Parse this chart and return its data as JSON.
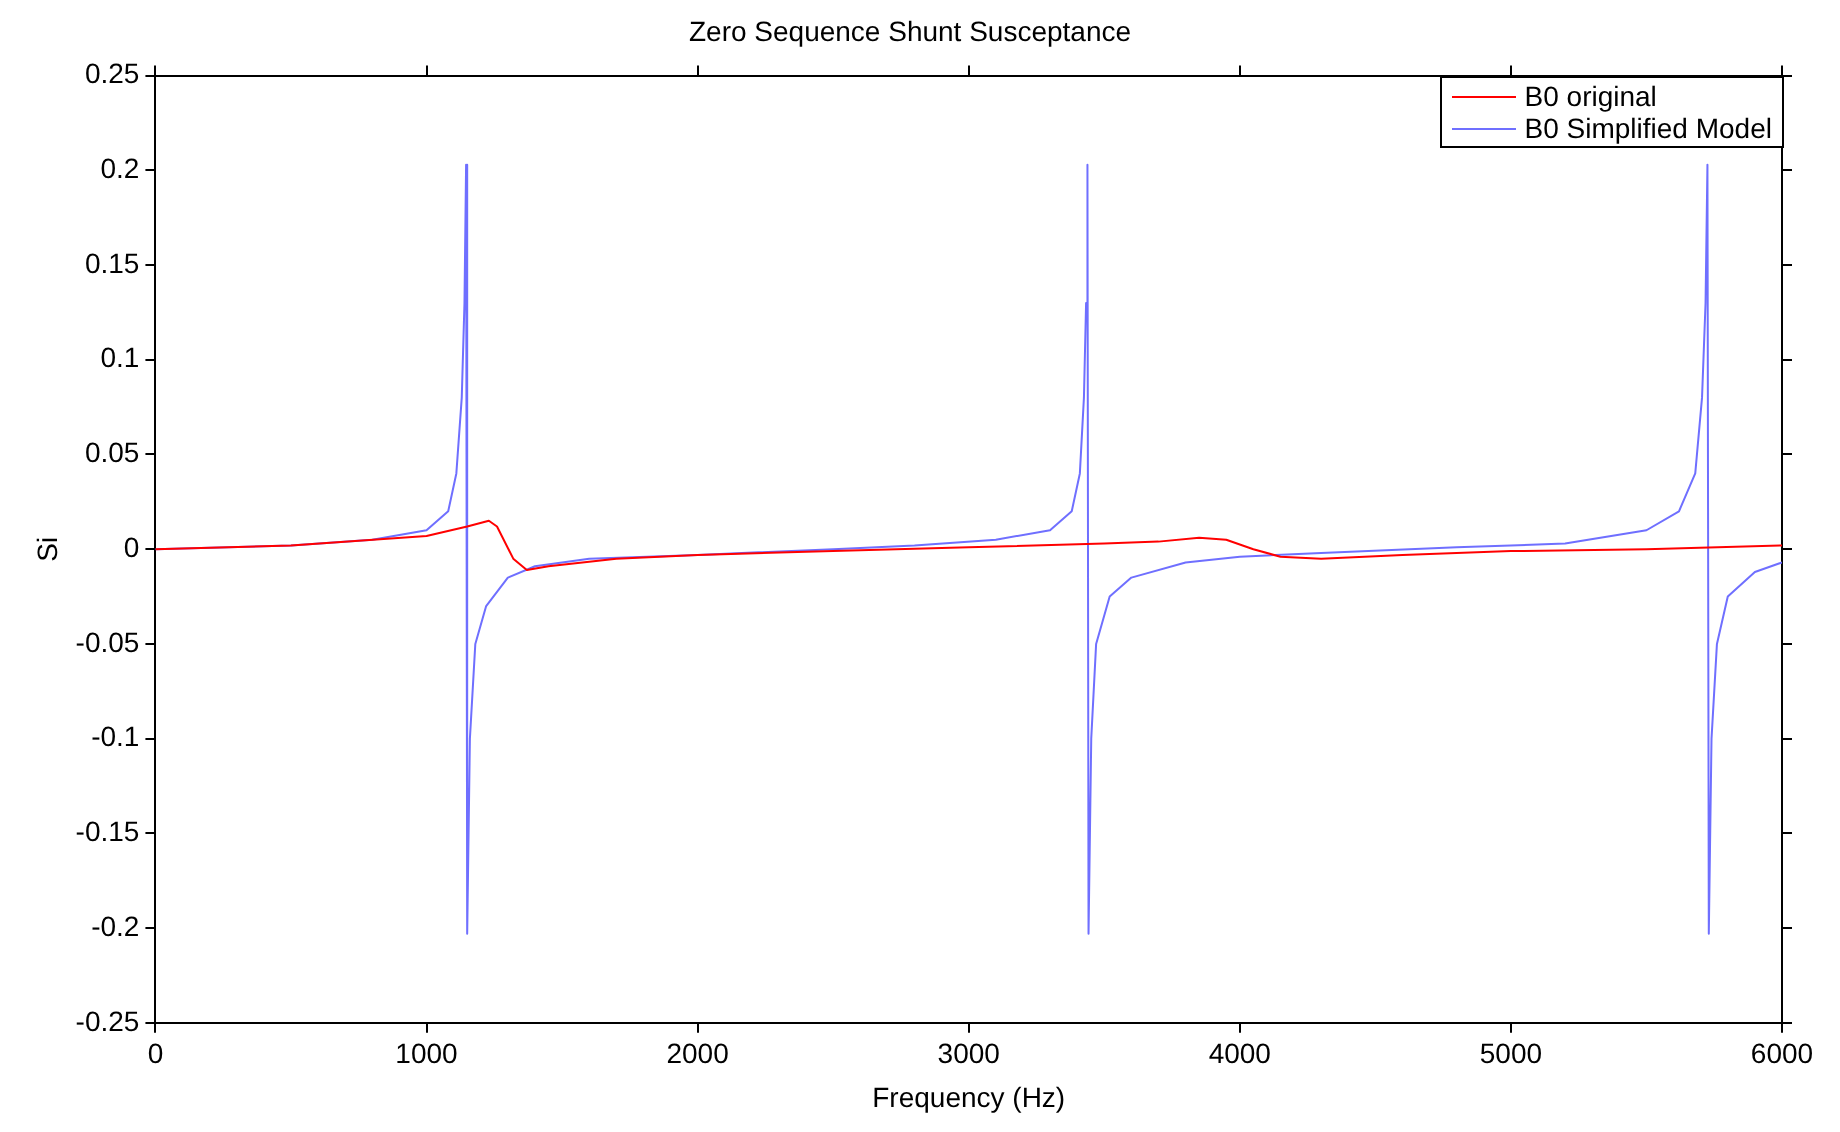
{
  "chart_data": {
    "type": "line",
    "title": "Zero Sequence Shunt Susceptance",
    "xlabel": "Frequency (Hz)",
    "ylabel": "Si",
    "series": [
      {
        "name": "B0 original",
        "color": "#ff0000",
        "x": [
          0,
          500,
          1000,
          1150,
          1230,
          1260,
          1320,
          1370,
          1450,
          1700,
          2000,
          2500,
          3000,
          3500,
          3700,
          3850,
          3950,
          4050,
          4150,
          4300,
          4600,
          5000,
          5500,
          6000
        ],
        "values": [
          0,
          0.002,
          0.007,
          0.012,
          0.015,
          0.012,
          -0.005,
          -0.011,
          -0.009,
          -0.005,
          -0.003,
          -0.001,
          0.001,
          0.003,
          0.004,
          0.006,
          0.005,
          0,
          -0.004,
          -0.005,
          -0.003,
          -0.001,
          0,
          0.002
        ]
      },
      {
        "name": "B0 Simplified Model",
        "color": "#6f6fff",
        "x": [
          0,
          500,
          800,
          1000,
          1080,
          1110,
          1130,
          1140,
          1146,
          1150,
          1160,
          1180,
          1220,
          1300,
          1400,
          1600,
          2000,
          2500,
          2800,
          3100,
          3300,
          3380,
          3410,
          3425,
          3433,
          3438,
          3442,
          3452,
          3470,
          3520,
          3600,
          3800,
          4000,
          4300,
          4800,
          5200,
          5500,
          5620,
          5680,
          5705,
          5718,
          5725,
          5730,
          5740,
          5760,
          5800,
          5900,
          6000
        ],
        "values": [
          0,
          0.002,
          0.005,
          0.01,
          0.02,
          0.04,
          0.08,
          0.13,
          0.203,
          -0.203,
          -0.1,
          -0.05,
          -0.03,
          -0.015,
          -0.009,
          -0.005,
          -0.003,
          0,
          0.002,
          0.005,
          0.01,
          0.02,
          0.04,
          0.08,
          0.13,
          0.203,
          -0.203,
          -0.1,
          -0.05,
          -0.025,
          -0.015,
          -0.007,
          -0.004,
          -0.002,
          0.001,
          0.003,
          0.01,
          0.02,
          0.04,
          0.08,
          0.13,
          0.203,
          -0.203,
          -0.1,
          -0.05,
          -0.025,
          -0.012,
          -0.007
        ]
      }
    ],
    "xlim": [
      0,
      6000
    ],
    "xticks": [
      0,
      1000,
      2000,
      3000,
      4000,
      5000,
      6000
    ],
    "ylim": [
      -0.25,
      0.25
    ],
    "yticks": [
      -0.25,
      -0.2,
      -0.15,
      -0.1,
      -0.05,
      0,
      0.05,
      0.1,
      0.15,
      0.2,
      0.25
    ],
    "grid": false,
    "legend": "top right",
    "marker": "none",
    "line_style": "solid"
  }
}
